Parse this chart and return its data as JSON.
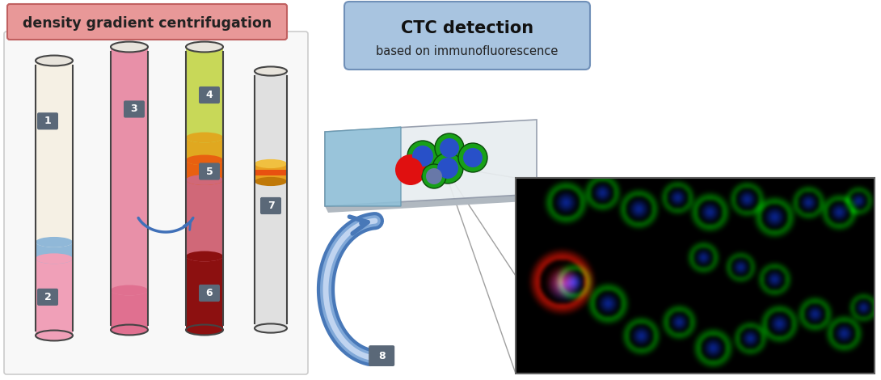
{
  "title_left": "density gradient centrifugation",
  "title_right_line1": "CTC detection",
  "title_right_line2": "based on immunofluorescence",
  "left_title_bg": "#e89898",
  "left_title_border": "#c06060",
  "left_panel_bg": "#f8f8f8",
  "left_panel_border": "#cccccc",
  "right_header_bg": "#a8c4e0",
  "right_header_border": "#7090b8",
  "label_bg": "#5a6878",
  "label_text": "#ffffff",
  "arrow_blue_dark": "#4070b8",
  "arrow_blue_light": "#7098d0",
  "big_arrow_dark": "#4878b8",
  "big_arrow_light": "#80a8d8",
  "cell_green": "#18a018",
  "cell_blue": "#2850c8",
  "cell_red": "#e01010",
  "slide_main": "#c0d8e8",
  "slide_blue": "#80b0cc",
  "fluor_bg": "#000a10"
}
